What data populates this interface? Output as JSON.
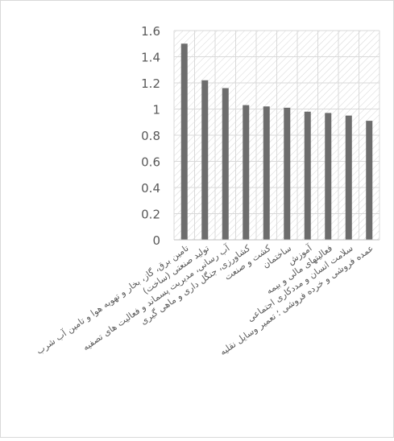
{
  "chart_data": {
    "type": "bar",
    "categories": [
      "تامین برق، گاز، بخار و تهویه هوا و تامین آب شرب",
      "تولید صنعتی (ساخت)",
      "آب رسانی، مدیریت پسماند و فعالیت های تصفیه",
      "کشاورزی، جنگل داری و ماهی گیری",
      "کشت و صنعت",
      "ساختمان",
      "آموزش",
      "فعالیتهای مالی و بیمه",
      "سلامت انسان و مددکاری اجتماعی",
      "عمده فروشی و خرده فروشی ؛ تعمیر وسایل نقلیه"
    ],
    "values": [
      1.5,
      1.22,
      1.16,
      1.03,
      1.02,
      1.01,
      0.98,
      0.97,
      0.95,
      0.91
    ],
    "ylim": [
      0,
      1.6
    ],
    "yticks": [
      "0",
      "0.2",
      "0.4",
      "0.6",
      "0.8",
      "1",
      "1.2",
      "1.4",
      "1.6"
    ],
    "grid": true,
    "legend": "none",
    "title": "",
    "xlabel": "",
    "ylabel": "",
    "colors": {
      "bar": "#6d6d6d",
      "grid": "#d9d9d9",
      "hatch": "#d6d6d6",
      "axis": "#bfbfbf",
      "tick_label": "#595959"
    }
  }
}
